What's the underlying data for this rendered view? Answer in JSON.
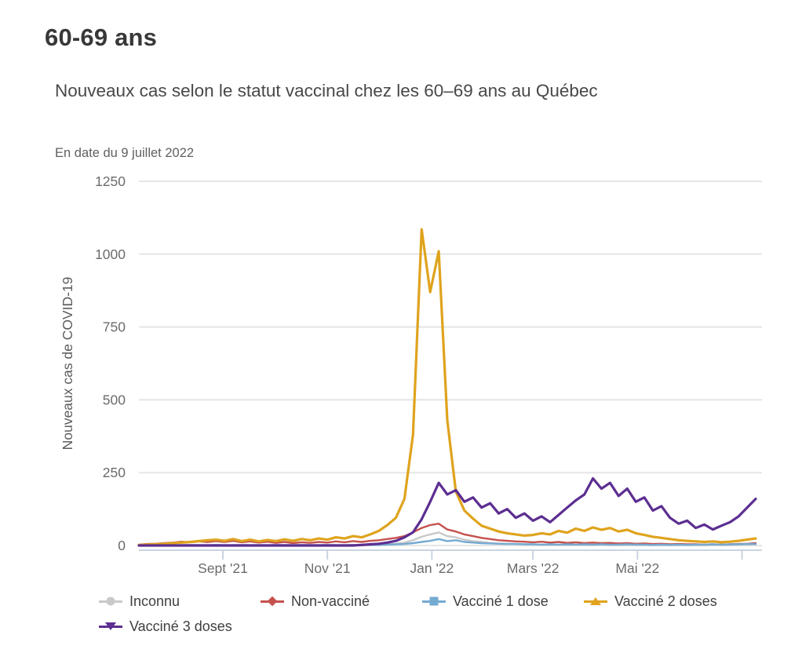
{
  "page": {
    "title": "60-69 ans",
    "subtitle": "Nouveaux cas selon le statut vaccinal chez les 60–69 ans au Québec",
    "as_of": "En date du 9 juillet 2022"
  },
  "colors": {
    "grid": "#e5e5e5",
    "axis": "#c9d4e0",
    "tick_label": "#6b6b6b",
    "axis_title": "#5d5d5d",
    "legend_text": "#3f3f3f"
  },
  "chart_data": {
    "type": "line",
    "title": "Nouveaux cas selon le statut vaccinal chez les 60–69 ans au Québec",
    "subtitle": "En date du 9 juillet 2022",
    "xlabel": "",
    "ylabel": "Nouveaux cas de COVID-19",
    "ylim": [
      0,
      1250
    ],
    "y_ticks": [
      0,
      250,
      500,
      750,
      1000,
      1250
    ],
    "grid": "horizontal-only",
    "legend_position": "bottom",
    "x_start_date": "2021-07-14",
    "x_end_date": "2022-07-09",
    "point_interval_days": 5,
    "total_days": 360,
    "x_ticks": [
      {
        "label": "Sept '21",
        "day": 49
      },
      {
        "label": "Nov '21",
        "day": 110
      },
      {
        "label": "Jan '22",
        "day": 171
      },
      {
        "label": "Mars '22",
        "day": 230
      },
      {
        "label": "Mai '22",
        "day": 291
      },
      {
        "label": "",
        "day": 352
      }
    ],
    "series": [
      {
        "name": "Inconnu",
        "slug": "inconnu",
        "color": "#c9c9c9",
        "marker": "circle",
        "line_width": 2.4,
        "values": [
          1,
          1,
          1,
          1,
          1,
          2,
          1,
          2,
          1,
          2,
          1,
          2,
          1,
          1,
          2,
          1,
          1,
          2,
          1,
          1,
          2,
          1,
          1,
          2,
          1,
          2,
          1,
          2,
          3,
          4,
          6,
          10,
          18,
          30,
          38,
          45,
          32,
          28,
          20,
          15,
          12,
          9,
          7,
          6,
          5,
          4,
          3,
          3,
          2,
          3,
          2,
          3,
          2,
          2,
          3,
          2,
          2,
          2,
          2,
          2,
          1,
          2,
          1,
          1,
          2,
          1,
          1,
          2,
          2,
          2,
          3,
          3,
          3
        ]
      },
      {
        "name": "Non-vacciné",
        "slug": "non-vaccine",
        "color": "#c5514d",
        "marker": "diamond",
        "line_width": 2.4,
        "values": [
          3,
          5,
          6,
          8,
          10,
          13,
          11,
          14,
          12,
          15,
          12,
          16,
          11,
          14,
          10,
          13,
          9,
          12,
          8,
          11,
          9,
          12,
          10,
          14,
          11,
          15,
          12,
          16,
          18,
          22,
          26,
          32,
          45,
          60,
          70,
          75,
          55,
          48,
          38,
          32,
          26,
          22,
          18,
          16,
          14,
          13,
          11,
          13,
          10,
          12,
          9,
          11,
          8,
          10,
          8,
          9,
          7,
          8,
          6,
          7,
          5,
          6,
          4,
          5,
          4,
          4,
          3,
          4,
          3,
          4,
          5,
          6,
          8
        ]
      },
      {
        "name": "Vacciné 1 dose",
        "slug": "vaccine-1-dose",
        "color": "#75aad1",
        "marker": "square",
        "line_width": 2.4,
        "values": [
          1,
          1,
          1,
          1,
          1,
          1,
          2,
          1,
          1,
          2,
          1,
          1,
          2,
          1,
          1,
          1,
          2,
          1,
          1,
          2,
          1,
          1,
          2,
          1,
          1,
          2,
          1,
          2,
          2,
          3,
          4,
          5,
          8,
          12,
          16,
          22,
          15,
          18,
          12,
          10,
          8,
          7,
          6,
          5,
          5,
          4,
          4,
          3,
          4,
          3,
          4,
          3,
          4,
          3,
          4,
          3,
          3,
          4,
          3,
          3,
          2,
          3,
          2,
          3,
          2,
          3,
          3,
          4,
          3,
          4,
          4,
          5,
          5
        ]
      },
      {
        "name": "Vacciné 2 doses",
        "slug": "vaccine-2-doses",
        "color": "#dfa31d",
        "marker": "triangle-up",
        "line_width": 3.2,
        "values": [
          2,
          3,
          4,
          6,
          8,
          10,
          12,
          15,
          18,
          20,
          16,
          22,
          15,
          20,
          14,
          19,
          15,
          21,
          16,
          22,
          18,
          24,
          20,
          28,
          24,
          32,
          28,
          38,
          50,
          70,
          95,
          160,
          380,
          1085,
          870,
          1010,
          430,
          185,
          120,
          92,
          68,
          58,
          48,
          42,
          38,
          34,
          36,
          42,
          38,
          50,
          44,
          58,
          50,
          62,
          54,
          60,
          48,
          54,
          42,
          36,
          30,
          26,
          22,
          18,
          16,
          14,
          12,
          14,
          11,
          13,
          16,
          20,
          24
        ]
      },
      {
        "name": "Vacciné 3 doses",
        "slug": "vaccine-3-doses",
        "color": "#5c2e91",
        "marker": "triangle-down",
        "line_width": 3.2,
        "values": [
          0,
          0,
          0,
          0,
          0,
          0,
          0,
          0,
          0,
          0,
          0,
          0,
          0,
          0,
          0,
          0,
          0,
          0,
          0,
          0,
          0,
          0,
          0,
          0,
          0,
          0,
          2,
          4,
          6,
          10,
          16,
          28,
          45,
          90,
          150,
          215,
          175,
          190,
          150,
          165,
          130,
          145,
          110,
          125,
          95,
          110,
          85,
          100,
          80,
          105,
          130,
          155,
          175,
          230,
          195,
          215,
          170,
          195,
          150,
          165,
          120,
          135,
          95,
          75,
          85,
          60,
          72,
          55,
          68,
          80,
          100,
          130,
          160
        ]
      }
    ]
  }
}
